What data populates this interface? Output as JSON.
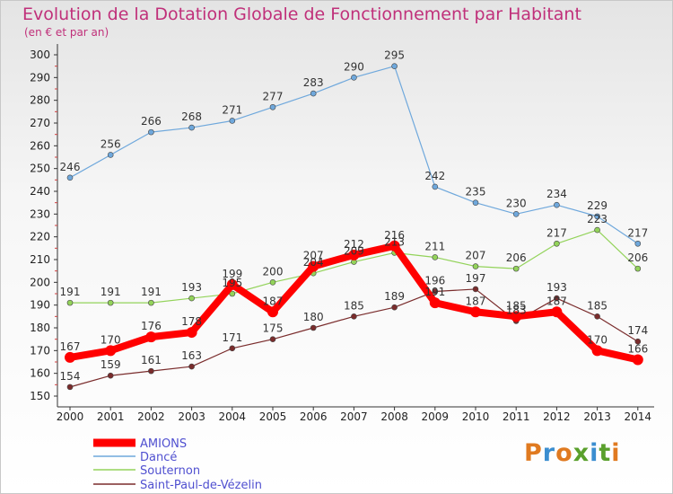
{
  "title": "Evolution de la Dotation Globale de Fonctionnement par Habitant",
  "subtitle": "(en € et par an)",
  "logo_text": "Proxiti",
  "chart_data": {
    "type": "line",
    "x": [
      2000,
      2001,
      2002,
      2003,
      2004,
      2005,
      2006,
      2007,
      2008,
      2009,
      2010,
      2011,
      2012,
      2013,
      2014
    ],
    "ylim": [
      150,
      300
    ],
    "yticks": [
      150,
      160,
      170,
      180,
      190,
      200,
      210,
      220,
      230,
      240,
      250,
      260,
      270,
      280,
      290,
      300
    ],
    "grid": false,
    "legend_placement": "bottom-left",
    "series": [
      {
        "name": "AMIONS",
        "color": "#ff0000",
        "values": [
          167,
          170,
          176,
          178,
          199,
          187,
          207,
          212,
          216,
          191,
          187,
          185,
          187,
          170,
          166
        ]
      },
      {
        "name": "Dancé",
        "color": "#6fa8dc",
        "values": [
          246,
          256,
          266,
          268,
          271,
          277,
          283,
          290,
          295,
          242,
          235,
          230,
          234,
          229,
          217
        ]
      },
      {
        "name": "Souternon",
        "color": "#93d35a",
        "values": [
          191,
          191,
          191,
          193,
          195,
          200,
          204,
          209,
          213,
          211,
          207,
          206,
          217,
          223,
          206
        ]
      },
      {
        "name": "Saint-Paul-de-Vézelin",
        "color": "#7a2c2c",
        "values": [
          154,
          159,
          161,
          163,
          171,
          175,
          180,
          185,
          189,
          196,
          197,
          183,
          193,
          185,
          174
        ]
      }
    ]
  }
}
